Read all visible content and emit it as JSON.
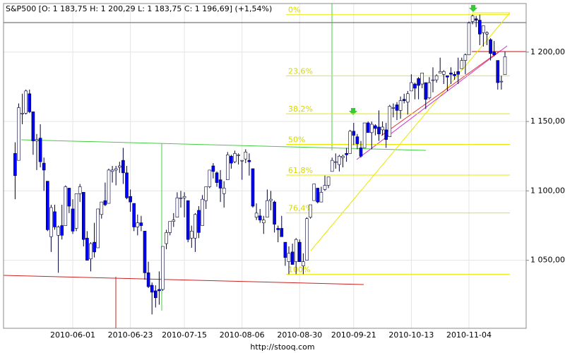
{
  "chart_data": {
    "type": "candlestick",
    "title": "S&P500 [O: 1 183,75  H: 1 200,29  L: 1 183,75  C: 1 196,69]  (+1,54%)",
    "source": "http://stooq.com",
    "ylim": [
      1001,
      1235
    ],
    "yticks": [
      {
        "value": 1050,
        "label": "1 050,00"
      },
      {
        "value": 1100,
        "label": "1 100,00"
      },
      {
        "value": 1150,
        "label": "1 150,00"
      },
      {
        "value": 1200,
        "label": "1 200,00"
      }
    ],
    "grid": true,
    "up_color": "#ffffff",
    "down_color": "#0000ff",
    "categories": [
      null,
      null,
      null,
      null,
      null,
      null,
      null,
      null,
      null,
      null,
      null,
      null,
      null,
      null,
      null,
      null,
      "2010-06-01",
      null,
      null,
      null,
      null,
      null,
      null,
      null,
      null,
      null,
      null,
      null,
      null,
      null,
      null,
      null,
      "2010-06-23",
      null,
      null,
      null,
      null,
      null,
      null,
      null,
      null,
      null,
      null,
      null,
      null,
      null,
      null,
      "2010-07-15",
      null,
      null,
      null,
      null,
      null,
      null,
      null,
      null,
      null,
      null,
      null,
      null,
      null,
      null,
      null,
      "2010-08-06",
      null,
      null,
      null,
      null,
      null,
      null,
      null,
      null,
      null,
      null,
      null,
      null,
      null,
      null,
      null,
      "2010-08-30",
      null,
      null,
      null,
      null,
      null,
      null,
      null,
      null,
      null,
      null,
      null,
      null,
      null,
      null,
      "2010-09-21",
      null,
      null,
      null,
      null,
      null,
      null,
      null,
      null,
      null,
      null,
      null,
      null,
      null,
      null,
      null,
      "2010-10-13",
      null,
      null,
      null,
      null,
      null,
      null,
      null,
      null,
      null,
      null,
      null,
      null,
      null,
      null,
      null,
      "2010-11-04",
      null,
      null,
      null,
      null,
      null,
      null,
      null,
      null,
      null,
      null
    ],
    "candles": [
      [
        1127,
        1135,
        1094,
        1111
      ],
      [
        1122,
        1163,
        1122,
        1160
      ],
      [
        1156,
        1170,
        1148,
        1156
      ],
      [
        1156,
        1173,
        1155,
        1172
      ],
      [
        1170,
        1173,
        1156,
        1157
      ],
      [
        1157,
        1157,
        1126,
        1136
      ],
      [
        1136,
        1141,
        1115,
        1137
      ],
      [
        1138,
        1148,
        1117,
        1121
      ],
      [
        1120,
        1124,
        1100,
        1115
      ],
      [
        1107,
        1107,
        1071,
        1072
      ],
      [
        1067,
        1090,
        1056,
        1088
      ],
      [
        1085,
        1090,
        1072,
        1074
      ],
      [
        1068,
        1075,
        1041,
        1074
      ],
      [
        1075,
        1090,
        1065,
        1068
      ],
      [
        1075,
        1104,
        1075,
        1103
      ],
      [
        1102,
        1102,
        1084,
        1089
      ],
      [
        1087,
        1094,
        1069,
        1071
      ],
      [
        1073,
        1098,
        1071,
        1098
      ],
      [
        1098,
        1105,
        1092,
        1103
      ],
      [
        1099,
        1099,
        1060,
        1065
      ],
      [
        1066,
        1071,
        1050,
        1050
      ],
      [
        1051,
        1063,
        1042,
        1062
      ],
      [
        1063,
        1077,
        1052,
        1056
      ],
      [
        1059,
        1087,
        1059,
        1087
      ],
      [
        1083,
        1092,
        1080,
        1092
      ],
      [
        1093,
        1106,
        1089,
        1090
      ],
      [
        1091,
        1116,
        1091,
        1115
      ],
      [
        1114,
        1118,
        1106,
        1115
      ],
      [
        1115,
        1118,
        1104,
        1116
      ],
      [
        1117,
        1121,
        1113,
        1118
      ],
      [
        1122,
        1131,
        1105,
        1113
      ],
      [
        1113,
        1118,
        1094,
        1095
      ],
      [
        1096,
        1101,
        1085,
        1092
      ],
      [
        1091,
        1091,
        1071,
        1074
      ],
      [
        1074,
        1083,
        1068,
        1077
      ],
      [
        1077,
        1082,
        1071,
        1075
      ],
      [
        1071,
        1071,
        1036,
        1041
      ],
      [
        1041,
        1049,
        1030,
        1031
      ],
      [
        1032,
        1034,
        1011,
        1027
      ],
      [
        1028,
        1032,
        1016,
        1023
      ],
      [
        1029,
        1042,
        1018,
        1028
      ],
      [
        1029,
        1060,
        1028,
        1060
      ],
      [
        1062,
        1072,
        1058,
        1070
      ],
      [
        1070,
        1078,
        1068,
        1078
      ],
      [
        1078,
        1084,
        1074,
        1079
      ],
      [
        1081,
        1099,
        1081,
        1095
      ],
      [
        1095,
        1100,
        1088,
        1095
      ],
      [
        1095,
        1099,
        1081,
        1096
      ],
      [
        1093,
        1093,
        1063,
        1065
      ],
      [
        1066,
        1075,
        1059,
        1071
      ],
      [
        1066,
        1084,
        1056,
        1083
      ],
      [
        1086,
        1089,
        1066,
        1070
      ],
      [
        1075,
        1097,
        1075,
        1094
      ],
      [
        1093,
        1103,
        1087,
        1103
      ],
      [
        1103,
        1115,
        1102,
        1115
      ],
      [
        1118,
        1120,
        1109,
        1114
      ],
      [
        1113,
        1114,
        1103,
        1106
      ],
      [
        1108,
        1115,
        1092,
        1102
      ],
      [
        1098,
        1107,
        1088,
        1102
      ],
      [
        1108,
        1128,
        1108,
        1126
      ],
      [
        1125,
        1126,
        1116,
        1120
      ],
      [
        1121,
        1129,
        1120,
        1127
      ],
      [
        1126,
        1127,
        1119,
        1126
      ],
      [
        1122,
        1122,
        1108,
        1122
      ],
      [
        1123,
        1130,
        1120,
        1128
      ],
      [
        1122,
        1127,
        1111,
        1121
      ],
      [
        1116,
        1116,
        1088,
        1089
      ],
      [
        1081,
        1091,
        1079,
        1084
      ],
      [
        1082,
        1087,
        1077,
        1079
      ],
      [
        1077,
        1082,
        1069,
        1079
      ],
      [
        1081,
        1101,
        1081,
        1093
      ],
      [
        1093,
        1100,
        1086,
        1094
      ],
      [
        1092,
        1093,
        1070,
        1076
      ],
      [
        1073,
        1075,
        1063,
        1072
      ],
      [
        1073,
        1082,
        1067,
        1067
      ],
      [
        1063,
        1063,
        1046,
        1052
      ],
      [
        1049,
        1060,
        1040,
        1055
      ],
      [
        1056,
        1062,
        1047,
        1047
      ],
      [
        1049,
        1066,
        1040,
        1065
      ],
      [
        1063,
        1065,
        1049,
        1049
      ],
      [
        1046,
        1055,
        1040,
        1049
      ],
      [
        1050,
        1081,
        1050,
        1080
      ],
      [
        1081,
        1090,
        1080,
        1090
      ],
      [
        1093,
        1105,
        1093,
        1105
      ],
      [
        1102,
        1102,
        1091,
        1092
      ],
      [
        1092,
        1103,
        1092,
        1099
      ],
      [
        1101,
        1111,
        1100,
        1104
      ],
      [
        1104,
        1110,
        1102,
        1110
      ],
      [
        1114,
        1124,
        1114,
        1122
      ],
      [
        1121,
        1127,
        1116,
        1121
      ],
      [
        1119,
        1126,
        1114,
        1125
      ],
      [
        1124,
        1126,
        1117,
        1125
      ],
      [
        1127,
        1131,
        1121,
        1126
      ],
      [
        1127,
        1144,
        1127,
        1143
      ],
      [
        1143,
        1149,
        1133,
        1140
      ],
      [
        1139,
        1141,
        1130,
        1134
      ],
      [
        1131,
        1136,
        1124,
        1125
      ],
      [
        1131,
        1149,
        1131,
        1149
      ],
      [
        1149,
        1150,
        1142,
        1142
      ],
      [
        1142,
        1150,
        1130,
        1148
      ],
      [
        1147,
        1148,
        1140,
        1145
      ],
      [
        1146,
        1158,
        1136,
        1141
      ],
      [
        1144,
        1150,
        1140,
        1146
      ],
      [
        1144,
        1149,
        1131,
        1137
      ],
      [
        1139,
        1162,
        1139,
        1161
      ],
      [
        1160,
        1163,
        1153,
        1160
      ],
      [
        1162,
        1164,
        1151,
        1158
      ],
      [
        1158,
        1168,
        1152,
        1165
      ],
      [
        1166,
        1170,
        1163,
        1165
      ],
      [
        1164,
        1172,
        1155,
        1170
      ],
      [
        1172,
        1184,
        1172,
        1178
      ],
      [
        1177,
        1178,
        1166,
        1174
      ],
      [
        1181,
        1182,
        1166,
        1176
      ],
      [
        1177,
        1185,
        1174,
        1185
      ],
      [
        1178,
        1178,
        1159,
        1166
      ],
      [
        1167,
        1182,
        1166,
        1178
      ],
      [
        1180,
        1189,
        1171,
        1180
      ],
      [
        1180,
        1184,
        1178,
        1183
      ],
      [
        1185,
        1196,
        1185,
        1186
      ],
      [
        1184,
        1187,
        1177,
        1186
      ],
      [
        1183,
        1183,
        1172,
        1182
      ],
      [
        1185,
        1189,
        1177,
        1184
      ],
      [
        1184,
        1186,
        1180,
        1183
      ],
      [
        1186,
        1196,
        1177,
        1184
      ],
      [
        1188,
        1196,
        1188,
        1194
      ],
      [
        1194,
        1199,
        1184,
        1198
      ],
      [
        1198,
        1222,
        1198,
        1221
      ],
      [
        1222,
        1227,
        1220,
        1226
      ],
      [
        1224,
        1226,
        1218,
        1223
      ],
      [
        1223,
        1227,
        1205,
        1213
      ],
      [
        1214,
        1219,
        1204,
        1219
      ],
      [
        1213,
        1215,
        1205,
        1214
      ],
      [
        1209,
        1210,
        1194,
        1199
      ],
      [
        1200,
        1208,
        1197,
        1198
      ],
      [
        1194,
        1194,
        1173,
        1178
      ],
      [
        1179,
        1183,
        1173,
        1179
      ],
      [
        1183.75,
        1200.29,
        1183.75,
        1196.69
      ]
    ],
    "fibonacci": {
      "color": "#e8e800",
      "levels": [
        {
          "value": 1227,
          "label": "0%"
        },
        {
          "value": 1182.9,
          "label": "23,6%"
        },
        {
          "value": 1155.6,
          "label": "38,2%"
        },
        {
          "value": 1133.5,
          "label": "50%"
        },
        {
          "value": 1111.4,
          "label": "61,8%"
        },
        {
          "value": 1084.1,
          "label": "76,4%"
        },
        {
          "value": 1040,
          "label": "100%"
        }
      ]
    }
  }
}
